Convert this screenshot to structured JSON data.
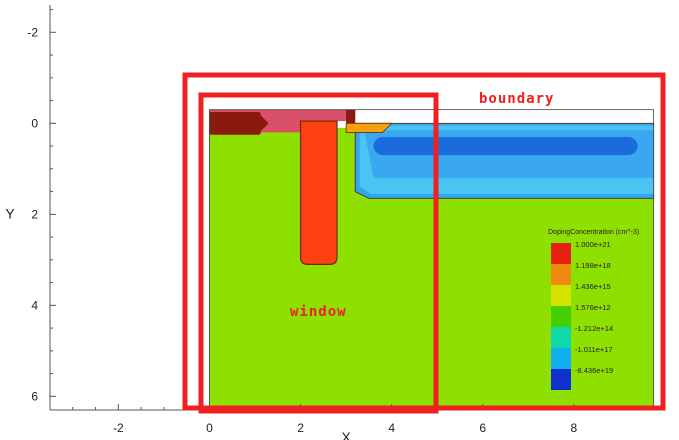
{
  "chart_data": {
    "type": "heatmap",
    "title": "",
    "xlabel": "X",
    "ylabel": "Y",
    "xlim": [
      -3.5,
      10
    ],
    "ylim": [
      6.3,
      -2.6
    ],
    "x_ticks": [
      -2,
      0,
      2,
      4,
      6,
      8
    ],
    "y_ticks": [
      -2,
      0,
      2,
      4,
      6
    ],
    "legend": {
      "title": "DopingConcentration (cm^-3)",
      "placement": "right",
      "entries": [
        {
          "label": "1.000e+21",
          "color": "#e52010"
        },
        {
          "label": "1.198e+18",
          "color": "#f08a10"
        },
        {
          "label": "1.436e+15",
          "color": "#d6e200"
        },
        {
          "label": "1.576e+12",
          "color": "#44d000"
        },
        {
          "label": "-1.212e+14",
          "color": "#10d8a8"
        },
        {
          "label": "-1.011e+17",
          "color": "#10b0f0"
        },
        {
          "label": "-8.436e+19",
          "color": "#1030d0"
        }
      ]
    },
    "regions": {
      "substrate": {
        "x": [
          0,
          9.75
        ],
        "y": [
          0.1,
          6.3
        ],
        "color": "#8ee000"
      },
      "top_oxide": {
        "x": [
          0,
          3.2
        ],
        "y": [
          -0.3,
          -0.05
        ],
        "color": "#d8506a"
      },
      "gate_trench": {
        "x": [
          2,
          2.8
        ],
        "y": [
          -0.05,
          3.1
        ],
        "color": "#ff4010"
      },
      "left_contact": {
        "x": [
          0,
          1.2
        ],
        "y": [
          -0.25,
          0.2
        ],
        "color": "#8a1a10"
      },
      "right_pad": {
        "x": [
          3,
          3.2
        ],
        "y": [
          -0.3,
          0.05
        ],
        "color": "#8a1a10"
      },
      "pn_junction": {
        "x": [
          3.2,
          9.75
        ],
        "y": [
          0,
          1.6
        ],
        "color": "#2ea8f0"
      },
      "deep_n_region": {
        "x": [
          3.6,
          9.4
        ],
        "y": [
          0.3,
          0.7
        ],
        "color": "#1560d8"
      },
      "orange_strip": {
        "x": [
          3,
          4
        ],
        "y": [
          0,
          0.2
        ],
        "color": "#f5a010"
      }
    },
    "annotations": {
      "boundary": {
        "label": "boundary",
        "color": "#ee2020",
        "x": [
          -0.6,
          9.9
        ],
        "y": [
          -1,
          6.3
        ]
      },
      "window": {
        "label": "window",
        "color": "#ee2020",
        "x": [
          -0.25,
          4.9
        ],
        "y": [
          -0.55,
          6.3
        ]
      }
    }
  }
}
